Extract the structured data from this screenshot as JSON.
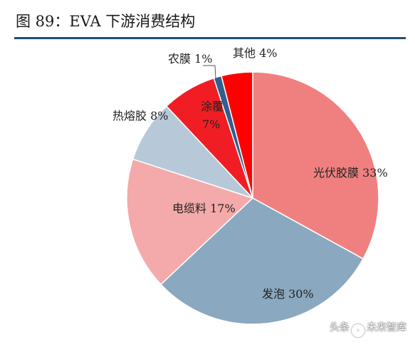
{
  "title": "图 89：EVA 下游消费结构",
  "watermark": {
    "prefix": "头条",
    "handle": "未来智库"
  },
  "chart_data": {
    "type": "pie",
    "title": "图 89：EVA 下游消费结构",
    "slices": [
      {
        "label": "光伏胶膜",
        "value": 33,
        "color": "#f08080",
        "display": "光伏胶膜 33%",
        "inside": true
      },
      {
        "label": "发泡",
        "value": 30,
        "color": "#8aa8bf",
        "display": "发泡 30%",
        "inside": true
      },
      {
        "label": "电缆料",
        "value": 17,
        "color": "#f4aaaa",
        "display": "电缆料 17%",
        "inside": true
      },
      {
        "label": "热熔胶",
        "value": 8,
        "color": "#b7c9d8",
        "display": "热熔胶 8%",
        "inside": false
      },
      {
        "label": "涂覆",
        "value": 7,
        "color": "#f01e24",
        "display": "涂覆|7%",
        "inside": true
      },
      {
        "label": "农膜",
        "value": 1,
        "color": "#2f5f8f",
        "display": "农膜 1%",
        "inside": false
      },
      {
        "label": "其他",
        "value": 4,
        "color": "#ff0000",
        "display": "其他 4%",
        "inside": false
      }
    ],
    "start_angle_deg": 0,
    "direction": "clockwise"
  }
}
